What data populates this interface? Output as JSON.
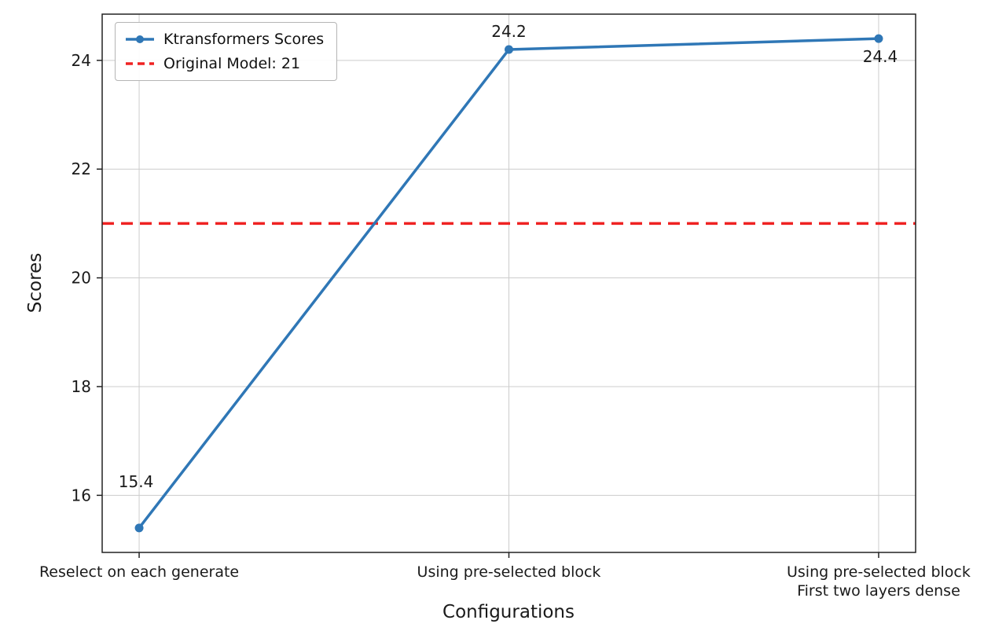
{
  "chart_data": {
    "type": "line",
    "categories": [
      "Reselect on each generate",
      "Using pre-selected block",
      "Using pre-selected block\nFirst two layers dense"
    ],
    "series": [
      {
        "name": "Ktransformers Scores",
        "values": [
          15.4,
          24.2,
          24.4
        ],
        "color": "#2f77b6",
        "marker": "circle"
      }
    ],
    "data_labels": [
      "15.4",
      "24.2",
      "24.4"
    ],
    "reference_line": {
      "label": "Original Model: 21",
      "value": 21,
      "color": "#ef2222",
      "style": "dashed"
    },
    "xlabel": "Configurations",
    "ylabel": "Scores",
    "yticks": [
      16,
      18,
      20,
      22,
      24
    ],
    "ylim": [
      14.95,
      24.85
    ],
    "grid": true,
    "grid_color": "#cccccc",
    "axis_color": "#222222",
    "legend_position": "top-left"
  }
}
